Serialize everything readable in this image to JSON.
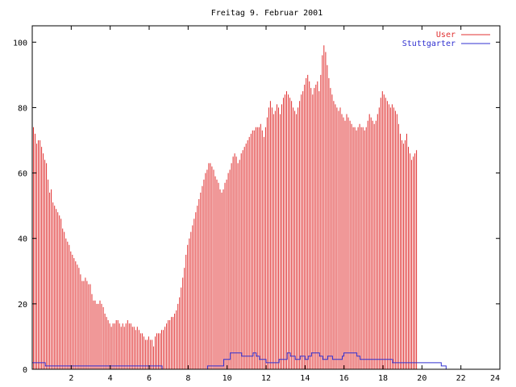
{
  "chart_data": {
    "type": "bar",
    "title": "Freitag 9. Februar 2001",
    "xlabel": "",
    "ylabel": "",
    "xlim": [
      0,
      24
    ],
    "ylim": [
      0,
      105
    ],
    "grid": false,
    "legend_position": "top-right",
    "x_ticks": [
      "2",
      "4",
      "6",
      "8",
      "10",
      "12",
      "14",
      "16",
      "18",
      "20",
      "22",
      "24"
    ],
    "y_ticks": [
      "0",
      "20",
      "40",
      "60",
      "80",
      "100"
    ],
    "bin_width_hours": 0.0833,
    "series": [
      {
        "name": "User",
        "style": "impulses",
        "color": "#e03030",
        "values": [
          74,
          72,
          69,
          70,
          70,
          68,
          66,
          64,
          63,
          58,
          54,
          55,
          51,
          50,
          49,
          48,
          47,
          46,
          43,
          42,
          40,
          39,
          38,
          36,
          35,
          34,
          33,
          32,
          31,
          29,
          27,
          27,
          28,
          27,
          26,
          26,
          23,
          21,
          21,
          20,
          20,
          21,
          20,
          19,
          17,
          16,
          15,
          14,
          13,
          14,
          14,
          15,
          15,
          14,
          13,
          14,
          13,
          14,
          15,
          14,
          14,
          13,
          13,
          12,
          13,
          12,
          11,
          11,
          10,
          9,
          9,
          10,
          9,
          9,
          7,
          10,
          11,
          11,
          11,
          12,
          12,
          13,
          14,
          15,
          15,
          16,
          16,
          17,
          18,
          20,
          22,
          25,
          28,
          31,
          35,
          38,
          40,
          42,
          44,
          46,
          48,
          50,
          52,
          54,
          56,
          58,
          60,
          61,
          63,
          63,
          62,
          61,
          59,
          58,
          57,
          55,
          54,
          55,
          57,
          58,
          60,
          61,
          63,
          65,
          66,
          65,
          63,
          64,
          66,
          67,
          68,
          69,
          70,
          71,
          72,
          73,
          73,
          74,
          74,
          74,
          75,
          73,
          71,
          74,
          77,
          80,
          82,
          80,
          78,
          79,
          81,
          80,
          78,
          81,
          83,
          84,
          85,
          84,
          83,
          82,
          80,
          79,
          78,
          80,
          82,
          84,
          85,
          87,
          89,
          90,
          88,
          86,
          84,
          86,
          87,
          88,
          85,
          90,
          96,
          99,
          97,
          93,
          89,
          86,
          84,
          82,
          81,
          80,
          79,
          80,
          78,
          77,
          76,
          78,
          77,
          76,
          75,
          74,
          74,
          73,
          74,
          75,
          74,
          74,
          73,
          74,
          76,
          78,
          77,
          76,
          75,
          76,
          78,
          80,
          83,
          85,
          84,
          83,
          82,
          81,
          80,
          81,
          80,
          79,
          78,
          75,
          72,
          70,
          69,
          70,
          72,
          68,
          66,
          64,
          65,
          66,
          67
        ]
      },
      {
        "name": "Stuttgarter",
        "style": "steps",
        "color": "#3030d0",
        "values": [
          2,
          2,
          2,
          2,
          2,
          2,
          2,
          2,
          1,
          1,
          1,
          1,
          1,
          1,
          1,
          1,
          1,
          1,
          1,
          1,
          1,
          1,
          1,
          1,
          1,
          1,
          1,
          1,
          1,
          1,
          1,
          1,
          1,
          1,
          1,
          1,
          1,
          1,
          1,
          1,
          1,
          1,
          1,
          1,
          1,
          1,
          1,
          1,
          1,
          1,
          1,
          1,
          1,
          1,
          1,
          1,
          1,
          1,
          1,
          1,
          1,
          1,
          1,
          1,
          1,
          1,
          1,
          1,
          1,
          1,
          1,
          1,
          1,
          1,
          1,
          1,
          1,
          1,
          1,
          1,
          0,
          0,
          0,
          0,
          0,
          0,
          0,
          0,
          0,
          0,
          0,
          0,
          0,
          0,
          0,
          0,
          0,
          0,
          0,
          0,
          0,
          0,
          0,
          0,
          0,
          0,
          0,
          0,
          1,
          1,
          1,
          1,
          1,
          1,
          1,
          1,
          1,
          1,
          3,
          3,
          3,
          3,
          5,
          5,
          5,
          5,
          5,
          5,
          5,
          4,
          4,
          4,
          4,
          4,
          4,
          4,
          5,
          5,
          4,
          4,
          3,
          3,
          3,
          3,
          2,
          2,
          2,
          2,
          2,
          2,
          2,
          2,
          3,
          3,
          3,
          3,
          3,
          5,
          5,
          4,
          4,
          4,
          3,
          3,
          3,
          4,
          4,
          4,
          3,
          3,
          4,
          4,
          5,
          5,
          5,
          5,
          5,
          4,
          4,
          3,
          3,
          3,
          4,
          4,
          4,
          3,
          3,
          3,
          3,
          3,
          3,
          4,
          5,
          5,
          5,
          5,
          5,
          5,
          5,
          5,
          4,
          4,
          3,
          3,
          3,
          3,
          3,
          3,
          3,
          3,
          3,
          3,
          3,
          3,
          3,
          3,
          3,
          3,
          3,
          3,
          3,
          3,
          2,
          2,
          2,
          2,
          2,
          2,
          2,
          2,
          2,
          2,
          2,
          2,
          2,
          2,
          2,
          2,
          2,
          2,
          2,
          2,
          2,
          2,
          2,
          2,
          2,
          2,
          2,
          2,
          2,
          2,
          1,
          1,
          1,
          0,
          0,
          0,
          0,
          0,
          0,
          0,
          0,
          0,
          0,
          0
        ]
      }
    ]
  }
}
